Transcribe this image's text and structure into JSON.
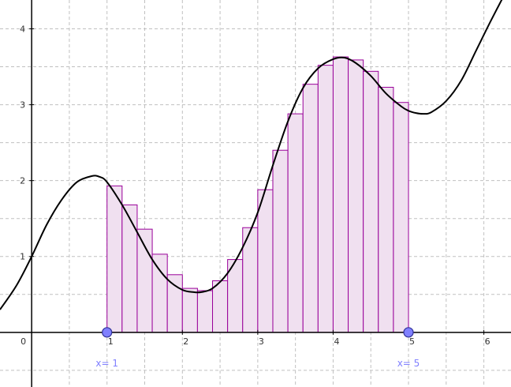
{
  "chart_data": {
    "type": "line",
    "title": "",
    "xlabel": "",
    "ylabel": "",
    "xlim": [
      -0.42,
      6.36
    ],
    "ylim": [
      -0.72,
      4.38
    ],
    "grid": true,
    "x_ticks": [
      {
        "value": 0,
        "label": "0"
      },
      {
        "value": 1,
        "label": "1"
      },
      {
        "value": 2,
        "label": "2"
      },
      {
        "value": 3,
        "label": "3"
      },
      {
        "value": 4,
        "label": "4"
      },
      {
        "value": 5,
        "label": "5"
      },
      {
        "value": 6,
        "label": "6"
      }
    ],
    "y_ticks": [
      {
        "value": 1,
        "label": "1"
      },
      {
        "value": 2,
        "label": "2"
      },
      {
        "value": 3,
        "label": "3"
      },
      {
        "value": 4,
        "label": "4"
      }
    ],
    "curve": {
      "x": [
        -0.42,
        -0.2,
        0,
        0.2,
        0.4,
        0.6,
        0.8,
        0.9,
        1.0,
        1.2,
        1.4,
        1.6,
        1.8,
        2.0,
        2.15,
        2.25,
        2.4,
        2.6,
        2.8,
        3.0,
        3.2,
        3.4,
        3.6,
        3.8,
        4.0,
        4.15,
        4.3,
        4.5,
        4.7,
        4.9,
        5.0,
        5.1,
        5.2,
        5.3,
        5.5,
        5.7,
        5.9,
        6.1,
        6.3,
        6.36
      ],
      "y": [
        0.3,
        0.62,
        1.0,
        1.42,
        1.75,
        1.98,
        2.06,
        2.05,
        1.98,
        1.68,
        1.32,
        0.96,
        0.7,
        0.56,
        0.53,
        0.53,
        0.58,
        0.78,
        1.12,
        1.58,
        2.2,
        2.78,
        3.22,
        3.48,
        3.6,
        3.62,
        3.55,
        3.38,
        3.15,
        2.98,
        2.92,
        2.89,
        2.88,
        2.9,
        3.05,
        3.32,
        3.72,
        4.12,
        4.5,
        4.6
      ]
    },
    "rectangles": {
      "x_start": [
        1.0,
        1.2,
        1.4,
        1.6,
        1.8,
        2.0,
        2.2,
        2.4,
        2.6,
        2.8,
        3.0,
        3.2,
        3.4,
        3.6,
        3.8,
        4.0,
        4.2,
        4.4,
        4.6,
        4.8
      ],
      "width": 0.2,
      "heights": [
        1.93,
        1.68,
        1.36,
        1.03,
        0.76,
        0.58,
        0.55,
        0.68,
        0.96,
        1.38,
        1.88,
        2.4,
        2.88,
        3.27,
        3.52,
        3.63,
        3.59,
        3.44,
        3.23,
        3.03
      ]
    },
    "points": [
      {
        "name": "x-start",
        "x": 1,
        "y": 0,
        "label": "x= 1"
      },
      {
        "name": "x-end",
        "x": 5,
        "y": 0,
        "label": "x= 5"
      }
    ],
    "colors": {
      "curve": "#000000",
      "rect_fill": "#f0e0f0",
      "rect_stroke": "#990099",
      "grid": "#c0c0c0",
      "axis": "#000000",
      "point_fill": "#8080ff",
      "point_stroke": "#333399",
      "point_label": "#8080ff"
    }
  }
}
